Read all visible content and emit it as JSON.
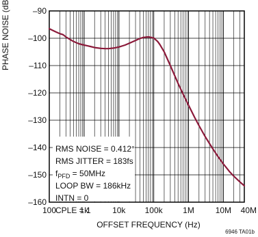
{
  "chart_data": {
    "type": "line",
    "title": "",
    "xlabel": "OFFSET FREQUENCY (Hz)",
    "ylabel": "PHASE NOISE (dBc/Hz)",
    "xscale": "log",
    "xlim": [
      100,
      40000000
    ],
    "ylim": [
      -160,
      -90
    ],
    "grid": true,
    "x_ticks": [
      {
        "value": 100,
        "label": "100"
      },
      {
        "value": 1000,
        "label": "1k"
      },
      {
        "value": 10000,
        "label": "10k"
      },
      {
        "value": 100000,
        "label": "100k"
      },
      {
        "value": 1000000,
        "label": "1M"
      },
      {
        "value": 10000000,
        "label": "10M"
      },
      {
        "value": 40000000,
        "label": "40M"
      }
    ],
    "y_ticks": [
      {
        "value": -90,
        "label": "–90"
      },
      {
        "value": -100,
        "label": "–100"
      },
      {
        "value": -110,
        "label": "–110"
      },
      {
        "value": -120,
        "label": "–120"
      },
      {
        "value": -130,
        "label": "–130"
      },
      {
        "value": -140,
        "label": "–140"
      },
      {
        "value": -150,
        "label": "–150"
      },
      {
        "value": -160,
        "label": "–160"
      }
    ],
    "series": [
      {
        "color": "#8b1a3a",
        "x": [
          100,
          120,
          150,
          200,
          250,
          300,
          400,
          500,
          700,
          1000,
          1500,
          2000,
          3000,
          4000,
          5000,
          7000,
          10000,
          15000,
          20000,
          30000,
          40000,
          50000,
          70000,
          100000,
          130000,
          150000,
          200000,
          300000,
          500000,
          700000,
          1000000,
          1500000,
          2000000,
          3000000,
          5000000,
          7000000,
          10000000,
          15000000,
          20000000,
          30000000,
          40000000
        ],
        "y": [
          -96.5,
          -97.0,
          -97.6,
          -98.3,
          -98.7,
          -99.5,
          -100.5,
          -101.2,
          -102.0,
          -102.5,
          -103.0,
          -103.4,
          -103.7,
          -103.8,
          -103.8,
          -103.6,
          -103.2,
          -102.5,
          -101.8,
          -100.8,
          -100.1,
          -99.7,
          -99.5,
          -99.9,
          -101.2,
          -102.3,
          -105.0,
          -110.0,
          -116.5,
          -120.5,
          -124.5,
          -129.0,
          -132.0,
          -136.0,
          -140.5,
          -143.3,
          -146.0,
          -148.8,
          -150.5,
          -152.6,
          -154.0
        ]
      }
    ],
    "annotations": [
      "RMS NOISE = 0.412°",
      "RMS JITTER = 183fs",
      "LOOP BW = 186kHz",
      "INTN = 0",
      "CPLE = 1"
    ],
    "fpfd": {
      "prefix": "f",
      "subscript": "PFD",
      "rest": " = 50MHz"
    },
    "figure_id": "6946 TA01b"
  }
}
